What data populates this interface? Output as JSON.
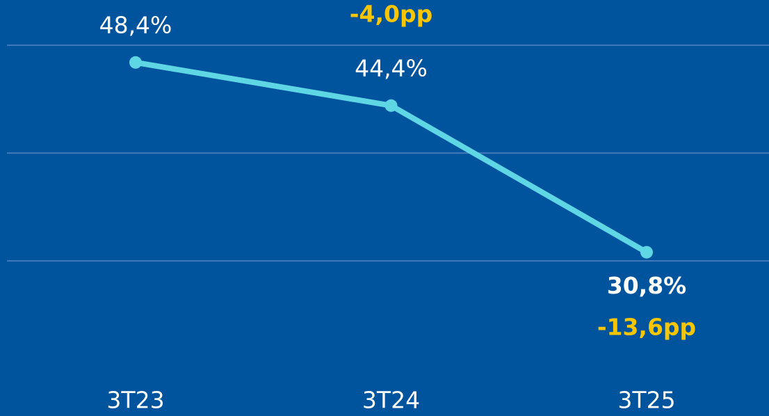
{
  "chart_data": {
    "type": "line",
    "categories": [
      "3T23",
      "3T24",
      "3T25"
    ],
    "series": [
      {
        "name": null,
        "color": "#5fd6e4",
        "values": [
          48.4,
          44.4,
          30.8
        ],
        "value_labels": [
          "48,4%",
          "44,4%",
          "30,8%"
        ]
      }
    ],
    "annotations": [
      {
        "text": "-4,0pp"
      },
      {
        "text": "-13,6pp"
      }
    ],
    "ylim": [
      30,
      50
    ],
    "yticks": [
      30,
      40,
      50
    ],
    "grid": true,
    "background": "#00549e",
    "grid_color": "#3f78bb",
    "annotation_color": "#f7c600"
  }
}
